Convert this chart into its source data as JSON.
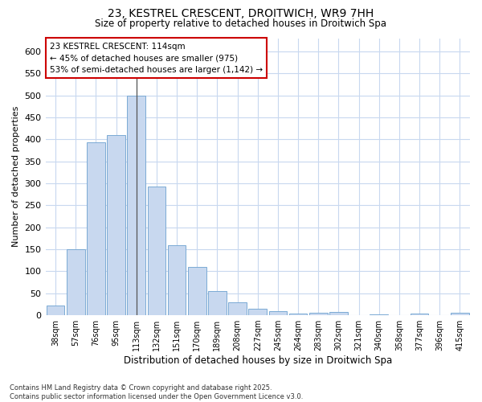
{
  "title1": "23, KESTREL CRESCENT, DROITWICH, WR9 7HH",
  "title2": "Size of property relative to detached houses in Droitwich Spa",
  "xlabel": "Distribution of detached houses by size in Droitwich Spa",
  "ylabel": "Number of detached properties",
  "categories": [
    "38sqm",
    "57sqm",
    "76sqm",
    "95sqm",
    "113sqm",
    "132sqm",
    "151sqm",
    "170sqm",
    "189sqm",
    "208sqm",
    "227sqm",
    "245sqm",
    "264sqm",
    "283sqm",
    "302sqm",
    "321sqm",
    "340sqm",
    "358sqm",
    "377sqm",
    "396sqm",
    "415sqm"
  ],
  "values": [
    22,
    150,
    393,
    410,
    500,
    293,
    160,
    110,
    55,
    30,
    15,
    10,
    3,
    5,
    8,
    0,
    2,
    1,
    3,
    1,
    5
  ],
  "bar_color": "#c8d8ef",
  "bar_edge_color": "#7baad4",
  "highlight_bar_index": 4,
  "bg_color": "#ffffff",
  "grid_color": "#c8d8ef",
  "ylim": [
    0,
    630
  ],
  "yticks": [
    0,
    50,
    100,
    150,
    200,
    250,
    300,
    350,
    400,
    450,
    500,
    550,
    600
  ],
  "annotation_title": "23 KESTREL CRESCENT: 114sqm",
  "annotation_line1": "← 45% of detached houses are smaller (975)",
  "annotation_line2": "53% of semi-detached houses are larger (1,142) →",
  "annotation_box_facecolor": "#ffffff",
  "annotation_box_edgecolor": "#cc0000",
  "footnote": "Contains HM Land Registry data © Crown copyright and database right 2025.\nContains public sector information licensed under the Open Government Licence v3.0."
}
